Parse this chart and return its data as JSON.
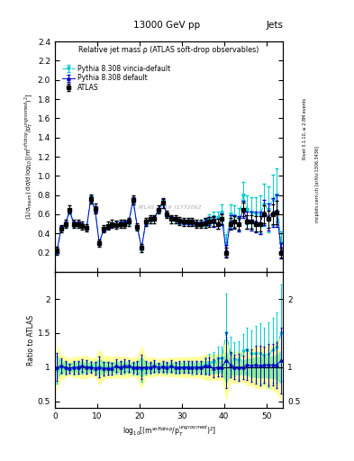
{
  "title_top": "13000 GeV pp",
  "title_right": "Jets",
  "main_title": "Relative jet mass ρ (ATLAS soft-drop observables)",
  "watermark": "ATLAS_2019_I1772062",
  "ylabel_main": "(1/σ$_{resum}$) dσ/d log$_{10}$[(m$^{soft drop}$/p$_T^{ungroomed}$)$^2$]",
  "ylabel_ratio": "Ratio to ATLAS",
  "xlabel": "log$_{10}$[(m$^{soft drop}$/p$_T^{ungroomed}$)$^2$]",
  "right_label1": "Rivet 3.1.10, ≥ 2.8M events",
  "right_label2": "mcplots.cern.ch [arXiv:1306.3436]",
  "ylim_main": [
    0.0,
    2.4
  ],
  "ylim_ratio": [
    0.4,
    2.4
  ],
  "yticks_main": [
    0.2,
    0.4,
    0.6,
    0.8,
    1.0,
    1.2,
    1.4,
    1.6,
    1.8,
    2.0,
    2.2,
    2.4
  ],
  "yticks_ratio": [
    0.5,
    1.0,
    1.5,
    2.0
  ],
  "yticks_ratio_right": [
    0.5,
    1.0,
    2.0
  ],
  "xlim": [
    0,
    54
  ],
  "xticks": [
    0,
    10,
    20,
    30,
    40,
    50
  ],
  "atlas_color": "#000000",
  "pythia_default_color": "#0000cc",
  "pythia_vincia_color": "#00cccc",
  "band_green": "#90ee90",
  "band_yellow": "#ffff99",
  "x": [
    0.5,
    1.5,
    2.5,
    3.5,
    4.5,
    5.5,
    6.5,
    7.5,
    8.5,
    9.5,
    10.5,
    11.5,
    12.5,
    13.5,
    14.5,
    15.5,
    16.5,
    17.5,
    18.5,
    19.5,
    20.5,
    21.5,
    22.5,
    23.5,
    24.5,
    25.5,
    26.5,
    27.5,
    28.5,
    29.5,
    30.5,
    31.5,
    32.5,
    33.5,
    34.5,
    35.5,
    36.5,
    37.5,
    38.5,
    39.5,
    40.5,
    41.5,
    42.5,
    43.5,
    44.5,
    45.5,
    46.5,
    47.5,
    48.5,
    49.5,
    50.5,
    51.5,
    52.5,
    53.5
  ],
  "atlas_y": [
    0.22,
    0.45,
    0.5,
    0.65,
    0.5,
    0.5,
    0.48,
    0.46,
    0.76,
    0.66,
    0.3,
    0.45,
    0.48,
    0.5,
    0.49,
    0.5,
    0.5,
    0.52,
    0.75,
    0.47,
    0.25,
    0.52,
    0.55,
    0.55,
    0.65,
    0.72,
    0.6,
    0.55,
    0.55,
    0.53,
    0.52,
    0.52,
    0.52,
    0.5,
    0.5,
    0.51,
    0.52,
    0.53,
    0.5,
    0.55,
    0.2,
    0.5,
    0.52,
    0.5,
    0.65,
    0.52,
    0.52,
    0.5,
    0.5,
    0.6,
    0.55,
    0.6,
    0.62,
    0.2
  ],
  "atlas_yerr": [
    0.04,
    0.04,
    0.04,
    0.04,
    0.04,
    0.04,
    0.04,
    0.04,
    0.05,
    0.05,
    0.04,
    0.04,
    0.04,
    0.04,
    0.04,
    0.04,
    0.04,
    0.04,
    0.05,
    0.04,
    0.04,
    0.04,
    0.04,
    0.04,
    0.04,
    0.05,
    0.04,
    0.04,
    0.04,
    0.04,
    0.04,
    0.04,
    0.04,
    0.04,
    0.04,
    0.05,
    0.05,
    0.05,
    0.05,
    0.05,
    0.05,
    0.06,
    0.06,
    0.06,
    0.07,
    0.07,
    0.07,
    0.08,
    0.08,
    0.09,
    0.09,
    0.1,
    0.12,
    0.05
  ],
  "py_default_y": [
    0.22,
    0.46,
    0.5,
    0.64,
    0.5,
    0.5,
    0.49,
    0.46,
    0.76,
    0.65,
    0.3,
    0.44,
    0.47,
    0.49,
    0.5,
    0.5,
    0.51,
    0.53,
    0.75,
    0.47,
    0.25,
    0.52,
    0.55,
    0.56,
    0.65,
    0.73,
    0.6,
    0.56,
    0.55,
    0.53,
    0.52,
    0.52,
    0.52,
    0.5,
    0.5,
    0.52,
    0.53,
    0.52,
    0.5,
    0.55,
    0.22,
    0.52,
    0.52,
    0.5,
    0.65,
    0.54,
    0.53,
    0.52,
    0.51,
    0.62,
    0.57,
    0.62,
    0.64,
    0.22
  ],
  "py_default_yerr": [
    0.02,
    0.02,
    0.02,
    0.02,
    0.02,
    0.02,
    0.02,
    0.02,
    0.03,
    0.03,
    0.02,
    0.02,
    0.02,
    0.02,
    0.02,
    0.02,
    0.02,
    0.02,
    0.03,
    0.02,
    0.02,
    0.02,
    0.02,
    0.02,
    0.02,
    0.03,
    0.02,
    0.02,
    0.02,
    0.02,
    0.02,
    0.02,
    0.02,
    0.02,
    0.02,
    0.03,
    0.04,
    0.05,
    0.05,
    0.06,
    0.06,
    0.07,
    0.07,
    0.08,
    0.09,
    0.09,
    0.1,
    0.11,
    0.12,
    0.13,
    0.14,
    0.15,
    0.17,
    0.08
  ],
  "py_vincia_y": [
    0.21,
    0.45,
    0.49,
    0.63,
    0.49,
    0.5,
    0.48,
    0.46,
    0.77,
    0.65,
    0.3,
    0.44,
    0.47,
    0.49,
    0.49,
    0.5,
    0.5,
    0.52,
    0.73,
    0.46,
    0.24,
    0.51,
    0.54,
    0.55,
    0.64,
    0.72,
    0.59,
    0.55,
    0.54,
    0.52,
    0.52,
    0.52,
    0.51,
    0.5,
    0.5,
    0.52,
    0.55,
    0.57,
    0.56,
    0.62,
    0.3,
    0.6,
    0.58,
    0.55,
    0.8,
    0.65,
    0.62,
    0.6,
    0.6,
    0.7,
    0.65,
    0.75,
    0.8,
    0.3
  ],
  "py_vincia_yerr": [
    0.02,
    0.02,
    0.02,
    0.02,
    0.02,
    0.02,
    0.02,
    0.02,
    0.03,
    0.03,
    0.02,
    0.02,
    0.02,
    0.02,
    0.02,
    0.02,
    0.02,
    0.02,
    0.03,
    0.02,
    0.02,
    0.02,
    0.02,
    0.02,
    0.02,
    0.03,
    0.02,
    0.02,
    0.02,
    0.02,
    0.02,
    0.02,
    0.02,
    0.02,
    0.02,
    0.04,
    0.05,
    0.06,
    0.07,
    0.08,
    0.09,
    0.1,
    0.11,
    0.12,
    0.14,
    0.15,
    0.16,
    0.18,
    0.2,
    0.22,
    0.24,
    0.26,
    0.28,
    0.12
  ]
}
